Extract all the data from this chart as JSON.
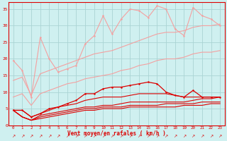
{
  "x": [
    0,
    1,
    2,
    3,
    4,
    5,
    6,
    7,
    8,
    9,
    10,
    11,
    12,
    13,
    14,
    15,
    16,
    17,
    18,
    19,
    20,
    21,
    22,
    23
  ],
  "xlabel": "Vent moyen/en rafales ( km/h )",
  "bg_color": "#cff0f0",
  "grid_color": "#aad4d4",
  "ylim": [
    0,
    37
  ],
  "yticks": [
    0,
    5,
    10,
    15,
    20,
    25,
    30,
    35
  ],
  "light_pink": "#f4a0a0",
  "dark_red": "#dd0000",
  "light_pink2": "#f08080",
  "jagged_light": [
    19.5,
    16.5,
    8.5,
    26.5,
    20.0,
    16.0,
    17.0,
    18.0,
    24.5,
    27.0,
    33.0,
    27.5,
    32.0,
    35.0,
    34.5,
    32.5,
    36.0,
    35.0,
    29.0,
    27.0,
    35.5,
    33.0,
    32.0,
    30.0
  ],
  "diag_upper": [
    13.5,
    14.5,
    9.0,
    15.5,
    16.5,
    17.5,
    18.5,
    19.5,
    20.5,
    21.5,
    22.0,
    22.5,
    23.5,
    24.5,
    25.5,
    26.5,
    27.5,
    28.0,
    28.0,
    28.5,
    29.5,
    30.0,
    30.0,
    30.5
  ],
  "diag_lower": [
    8.5,
    9.5,
    6.0,
    9.5,
    10.5,
    11.5,
    12.5,
    13.0,
    14.0,
    14.5,
    15.0,
    15.5,
    16.5,
    17.0,
    18.0,
    18.5,
    19.5,
    20.0,
    20.0,
    20.5,
    21.5,
    22.0,
    22.0,
    22.5
  ],
  "jagged_dark": [
    4.5,
    4.5,
    2.5,
    3.5,
    5.0,
    5.5,
    6.5,
    7.5,
    9.5,
    9.5,
    11.0,
    11.5,
    11.5,
    12.0,
    12.5,
    13.0,
    12.5,
    10.0,
    9.0,
    8.5,
    10.5,
    8.5,
    8.5,
    8.5
  ],
  "smooth_dark1": [
    4.5,
    4.5,
    2.5,
    3.5,
    4.5,
    5.5,
    6.0,
    6.5,
    7.5,
    8.0,
    8.5,
    8.5,
    8.5,
    9.0,
    9.5,
    9.5,
    9.5,
    9.5,
    9.0,
    8.5,
    8.5,
    8.5,
    8.5,
    8.5
  ],
  "smooth_dark2": [
    4.5,
    2.5,
    1.5,
    3.0,
    3.5,
    4.0,
    4.5,
    5.0,
    5.5,
    5.5,
    6.0,
    6.0,
    6.5,
    7.0,
    7.0,
    7.0,
    7.0,
    7.0,
    7.0,
    7.0,
    7.5,
    8.0,
    8.0,
    8.5
  ],
  "smooth_dark3": [
    4.5,
    2.5,
    1.5,
    2.5,
    3.0,
    3.5,
    4.0,
    4.5,
    5.0,
    5.0,
    5.5,
    5.5,
    5.5,
    6.0,
    6.0,
    6.0,
    6.0,
    6.5,
    6.5,
    6.5,
    6.5,
    7.0,
    7.0,
    7.0
  ],
  "smooth_dark4": [
    4.5,
    2.5,
    1.5,
    2.0,
    2.5,
    3.0,
    3.5,
    4.0,
    4.5,
    4.5,
    5.0,
    5.0,
    5.0,
    5.5,
    5.5,
    5.5,
    5.5,
    5.5,
    5.5,
    6.0,
    6.0,
    6.0,
    6.5,
    6.5
  ]
}
